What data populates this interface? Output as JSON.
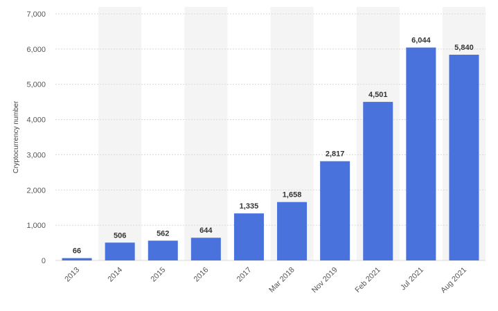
{
  "chart_data": {
    "type": "bar",
    "categories": [
      "2013",
      "2014",
      "2015",
      "2016",
      "2017",
      "Mar 2018",
      "Nov 2019",
      "Feb 2021",
      "Jul 2021",
      "Aug 2021"
    ],
    "values": [
      66,
      506,
      562,
      644,
      1335,
      1658,
      2817,
      4501,
      6044,
      5840
    ],
    "value_labels": [
      "66",
      "506",
      "562",
      "644",
      "1,335",
      "1,658",
      "2,817",
      "4,501",
      "6,044",
      "5,840"
    ],
    "title": "",
    "xlabel": "",
    "ylabel": "Cryptocurrency number",
    "ylim": [
      0,
      7000
    ],
    "yticks": [
      0,
      1000,
      2000,
      3000,
      4000,
      5000,
      6000,
      7000
    ],
    "ytick_labels": [
      "0",
      "1,000",
      "2,000",
      "3,000",
      "4,000",
      "5,000",
      "6,000",
      "7,000"
    ],
    "grid": true,
    "bar_color": "#4a72dc",
    "band_color": "#f4f4f4",
    "grid_color": "#d8d8d8"
  }
}
